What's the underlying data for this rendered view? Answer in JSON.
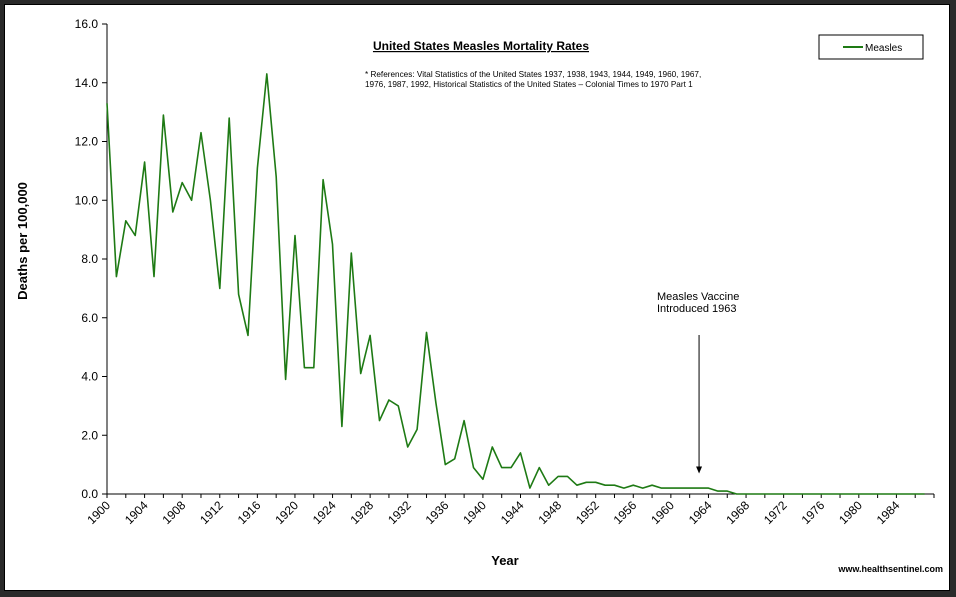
{
  "chart_data": {
    "type": "line",
    "title": "United States Measles Mortality  Rates",
    "references_line1": "* References: Vital Statistics of the United States 1937, 1938, 1943, 1944, 1949, 1960, 1967,",
    "references_line2": "1976, 1987, 1992, Historical Statistics of the United States – Colonial Times to 1970 Part 1",
    "xlabel": "Year",
    "ylabel": "Deaths per 100,000",
    "ylim": [
      0,
      16
    ],
    "yticks": [
      "0.0",
      "2.0",
      "4.0",
      "6.0",
      "8.0",
      "10.0",
      "12.0",
      "14.0",
      "16.0"
    ],
    "xlim": [
      1900,
      1988
    ],
    "xticks": [
      "1900",
      "1904",
      "1908",
      "1912",
      "1916",
      "1920",
      "1924",
      "1928",
      "1932",
      "1936",
      "1940",
      "1944",
      "1948",
      "1952",
      "1956",
      "1960",
      "1964",
      "1968",
      "1972",
      "1976",
      "1980",
      "1984"
    ],
    "legend": "top-right",
    "grid": false,
    "annotation": {
      "line1": "Measles Vaccine",
      "line2": "Introduced 1963",
      "x": 1963,
      "y": 0.7
    },
    "source": "www.healthsentinel.com",
    "series": [
      {
        "name": "Measles",
        "color": "#1e7a14",
        "x": [
          1900,
          1901,
          1902,
          1903,
          1904,
          1905,
          1906,
          1907,
          1908,
          1909,
          1910,
          1911,
          1912,
          1913,
          1914,
          1915,
          1916,
          1917,
          1918,
          1919,
          1920,
          1921,
          1922,
          1923,
          1924,
          1925,
          1926,
          1927,
          1928,
          1929,
          1930,
          1931,
          1932,
          1933,
          1934,
          1935,
          1936,
          1937,
          1938,
          1939,
          1940,
          1941,
          1942,
          1943,
          1944,
          1945,
          1946,
          1947,
          1948,
          1949,
          1950,
          1951,
          1952,
          1953,
          1954,
          1955,
          1956,
          1957,
          1958,
          1959,
          1960,
          1961,
          1962,
          1963,
          1964,
          1965,
          1966,
          1967,
          1968,
          1969,
          1970,
          1971,
          1972,
          1973,
          1974,
          1975,
          1976,
          1977,
          1978,
          1979,
          1980,
          1981,
          1982,
          1983,
          1984,
          1985,
          1986,
          1987
        ],
        "values": [
          13.3,
          7.4,
          9.3,
          8.8,
          11.3,
          7.4,
          12.9,
          9.6,
          10.6,
          10.0,
          12.3,
          10.0,
          7.0,
          12.8,
          6.8,
          5.4,
          11.1,
          14.3,
          10.8,
          3.9,
          8.8,
          4.3,
          4.3,
          10.7,
          8.5,
          2.3,
          8.2,
          4.1,
          5.4,
          2.5,
          3.2,
          3.0,
          1.6,
          2.2,
          5.5,
          3.1,
          1.0,
          1.2,
          2.5,
          0.9,
          0.5,
          1.6,
          0.9,
          0.9,
          1.4,
          0.2,
          0.9,
          0.3,
          0.6,
          0.6,
          0.3,
          0.4,
          0.4,
          0.3,
          0.3,
          0.2,
          0.3,
          0.2,
          0.3,
          0.2,
          0.2,
          0.2,
          0.2,
          0.2,
          0.2,
          0.1,
          0.1,
          0.0,
          0.0,
          0.0,
          0.0,
          0.0,
          0.0,
          0.0,
          0.0,
          0.0,
          0.0,
          0.0,
          0.0,
          0.0,
          0.0,
          0.0,
          0.0,
          0.0,
          0.0,
          0.0,
          0.0,
          0.0
        ]
      }
    ]
  }
}
